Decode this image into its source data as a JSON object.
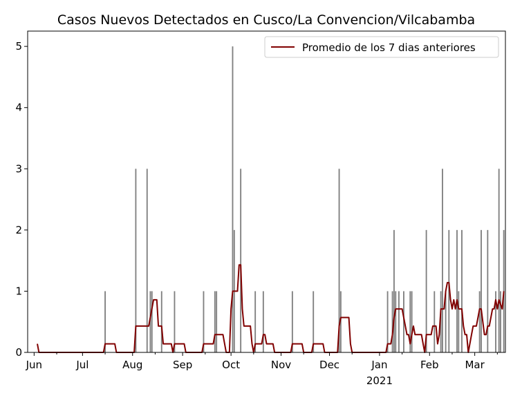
{
  "chart_data": {
    "type": "bar",
    "title": "Casos Nuevos Detectados en Cusco/La Convencion/Vilcabamba",
    "xlabel": "",
    "ylabel": "",
    "x_range": [
      "2020-05-28",
      "2021-03-20"
    ],
    "ylim": [
      0,
      5.25
    ],
    "y_ticks": [
      0,
      1,
      2,
      3,
      4,
      5
    ],
    "x_ticks": [
      {
        "date": "2020-06-01",
        "label": "Jun"
      },
      {
        "date": "2020-07-01",
        "label": "Jul"
      },
      {
        "date": "2020-08-01",
        "label": "Aug"
      },
      {
        "date": "2020-09-01",
        "label": "Sep"
      },
      {
        "date": "2020-10-01",
        "label": "Oct"
      },
      {
        "date": "2020-11-01",
        "label": "Nov"
      },
      {
        "date": "2020-12-01",
        "label": "Dec"
      },
      {
        "date": "2021-01-01",
        "label": "Jan",
        "sublabel": "2021"
      },
      {
        "date": "2021-02-01",
        "label": "Feb"
      },
      {
        "date": "2021-03-01",
        "label": "Mar"
      }
    ],
    "grid": false,
    "legend_position": "top-right",
    "colors": {
      "bars": "#808080",
      "line": "#800000"
    },
    "series": [
      {
        "type": "bar",
        "data": [
          [
            "2020-07-15",
            1
          ],
          [
            "2020-08-03",
            3
          ],
          [
            "2020-08-10",
            3
          ],
          [
            "2020-08-12",
            1
          ],
          [
            "2020-08-13",
            1
          ],
          [
            "2020-08-19",
            1
          ],
          [
            "2020-08-27",
            1
          ],
          [
            "2020-09-14",
            1
          ],
          [
            "2020-09-21",
            1
          ],
          [
            "2020-09-22",
            1
          ],
          [
            "2020-10-02",
            5
          ],
          [
            "2020-10-03",
            2
          ],
          [
            "2020-10-07",
            3
          ],
          [
            "2020-10-16",
            1
          ],
          [
            "2020-10-21",
            1
          ],
          [
            "2020-11-08",
            1
          ],
          [
            "2020-11-21",
            1
          ],
          [
            "2020-12-07",
            3
          ],
          [
            "2020-12-08",
            1
          ],
          [
            "2021-01-06",
            1
          ],
          [
            "2021-01-09",
            1
          ],
          [
            "2021-01-10",
            2
          ],
          [
            "2021-01-11",
            1
          ],
          [
            "2021-01-13",
            1
          ],
          [
            "2021-01-16",
            1
          ],
          [
            "2021-01-20",
            1
          ],
          [
            "2021-01-21",
            1
          ],
          [
            "2021-01-30",
            2
          ],
          [
            "2021-02-04",
            1
          ],
          [
            "2021-02-08",
            1
          ],
          [
            "2021-02-09",
            3
          ],
          [
            "2021-02-11",
            1
          ],
          [
            "2021-02-13",
            2
          ],
          [
            "2021-02-18",
            2
          ],
          [
            "2021-02-19",
            1
          ],
          [
            "2021-02-21",
            2
          ],
          [
            "2021-03-04",
            1
          ],
          [
            "2021-03-05",
            2
          ],
          [
            "2021-03-09",
            2
          ],
          [
            "2021-03-14",
            1
          ],
          [
            "2021-03-16",
            3
          ],
          [
            "2021-03-17",
            1
          ],
          [
            "2021-03-19",
            2
          ]
        ]
      },
      {
        "type": "line",
        "name": "Promedio de los 7 dias anteriores",
        "data": [
          [
            "2020-06-03",
            0.14
          ],
          [
            "2020-06-04",
            0
          ],
          [
            "2020-07-14",
            0
          ],
          [
            "2020-07-15",
            0.14
          ],
          [
            "2020-07-21",
            0.14
          ],
          [
            "2020-07-22",
            0
          ],
          [
            "2020-08-02",
            0
          ],
          [
            "2020-08-03",
            0.43
          ],
          [
            "2020-08-11",
            0.43
          ],
          [
            "2020-08-14",
            0.86
          ],
          [
            "2020-08-16",
            0.86
          ],
          [
            "2020-08-17",
            0.43
          ],
          [
            "2020-08-19",
            0.43
          ],
          [
            "2020-08-20",
            0.14
          ],
          [
            "2020-08-25",
            0.14
          ],
          [
            "2020-08-26",
            0
          ],
          [
            "2020-08-27",
            0.14
          ],
          [
            "2020-09-02",
            0.14
          ],
          [
            "2020-09-03",
            0
          ],
          [
            "2020-09-13",
            0
          ],
          [
            "2020-09-14",
            0.14
          ],
          [
            "2020-09-20",
            0.14
          ],
          [
            "2020-09-21",
            0.29
          ],
          [
            "2020-09-26",
            0.29
          ],
          [
            "2020-09-28",
            0
          ],
          [
            "2020-09-30",
            0
          ],
          [
            "2020-10-01",
            0.71
          ],
          [
            "2020-10-02",
            1
          ],
          [
            "2020-10-05",
            1
          ],
          [
            "2020-10-06",
            1.43
          ],
          [
            "2020-10-07",
            1.43
          ],
          [
            "2020-10-08",
            0.71
          ],
          [
            "2020-10-09",
            0.43
          ],
          [
            "2020-10-13",
            0.43
          ],
          [
            "2020-10-14",
            0.14
          ],
          [
            "2020-10-15",
            0
          ],
          [
            "2020-10-16",
            0.14
          ],
          [
            "2020-10-20",
            0.14
          ],
          [
            "2020-10-21",
            0.29
          ],
          [
            "2020-10-22",
            0.29
          ],
          [
            "2020-10-23",
            0.14
          ],
          [
            "2020-10-27",
            0.14
          ],
          [
            "2020-10-28",
            0
          ],
          [
            "2020-11-07",
            0
          ],
          [
            "2020-11-08",
            0.14
          ],
          [
            "2020-11-14",
            0.14
          ],
          [
            "2020-11-15",
            0
          ],
          [
            "2020-11-20",
            0
          ],
          [
            "2020-11-21",
            0.14
          ],
          [
            "2020-11-27",
            0.14
          ],
          [
            "2020-11-28",
            0
          ],
          [
            "2020-12-06",
            0
          ],
          [
            "2020-12-07",
            0.43
          ],
          [
            "2020-12-08",
            0.57
          ],
          [
            "2020-12-13",
            0.57
          ],
          [
            "2020-12-14",
            0.14
          ],
          [
            "2020-12-15",
            0
          ],
          [
            "2021-01-05",
            0
          ],
          [
            "2021-01-06",
            0.14
          ],
          [
            "2021-01-08",
            0.14
          ],
          [
            "2021-01-09",
            0.29
          ],
          [
            "2021-01-10",
            0.57
          ],
          [
            "2021-01-11",
            0.71
          ],
          [
            "2021-01-15",
            0.71
          ],
          [
            "2021-01-16",
            0.57
          ],
          [
            "2021-01-17",
            0.43
          ],
          [
            "2021-01-18",
            0.29
          ],
          [
            "2021-01-19",
            0.29
          ],
          [
            "2021-01-20",
            0.14
          ],
          [
            "2021-01-21",
            0.29
          ],
          [
            "2021-01-22",
            0.43
          ],
          [
            "2021-01-23",
            0.29
          ],
          [
            "2021-01-24",
            0.29
          ],
          [
            "2021-01-27",
            0.29
          ],
          [
            "2021-01-28",
            0.14
          ],
          [
            "2021-01-29",
            0
          ],
          [
            "2021-01-30",
            0.29
          ],
          [
            "2021-02-02",
            0.29
          ],
          [
            "2021-02-03",
            0.43
          ],
          [
            "2021-02-05",
            0.43
          ],
          [
            "2021-02-06",
            0.14
          ],
          [
            "2021-02-07",
            0.29
          ],
          [
            "2021-02-08",
            0.71
          ],
          [
            "2021-02-10",
            0.71
          ],
          [
            "2021-02-11",
            1
          ],
          [
            "2021-02-12",
            1.14
          ],
          [
            "2021-02-13",
            1.14
          ],
          [
            "2021-02-14",
            0.86
          ],
          [
            "2021-02-15",
            0.71
          ],
          [
            "2021-02-16",
            0.86
          ],
          [
            "2021-02-17",
            0.71
          ],
          [
            "2021-02-18",
            0.86
          ],
          [
            "2021-02-19",
            0.71
          ],
          [
            "2021-02-21",
            0.71
          ],
          [
            "2021-02-22",
            0.43
          ],
          [
            "2021-02-23",
            0.29
          ],
          [
            "2021-02-24",
            0.29
          ],
          [
            "2021-02-25",
            0
          ],
          [
            "2021-02-27",
            0.29
          ],
          [
            "2021-02-28",
            0.43
          ],
          [
            "2021-03-02",
            0.43
          ],
          [
            "2021-03-03",
            0.57
          ],
          [
            "2021-03-04",
            0.71
          ],
          [
            "2021-03-05",
            0.71
          ],
          [
            "2021-03-07",
            0.29
          ],
          [
            "2021-03-08",
            0.29
          ],
          [
            "2021-03-09",
            0.43
          ],
          [
            "2021-03-10",
            0.43
          ],
          [
            "2021-03-11",
            0.57
          ],
          [
            "2021-03-12",
            0.71
          ],
          [
            "2021-03-13",
            0.71
          ],
          [
            "2021-03-14",
            0.86
          ],
          [
            "2021-03-15",
            0.71
          ],
          [
            "2021-03-16",
            0.86
          ],
          [
            "2021-03-18",
            0.71
          ],
          [
            "2021-03-19",
            1
          ]
        ]
      }
    ]
  }
}
